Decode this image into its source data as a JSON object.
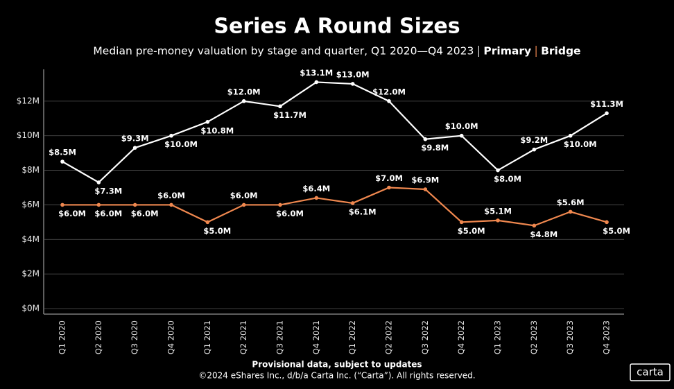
{
  "chart_data": {
    "type": "line",
    "title": "Series A Round Sizes",
    "subtitle": "Median pre-money valuation by stage and quarter, Q1 2020—Q4 2023",
    "categories": [
      "Q1 2020",
      "Q2 2020",
      "Q3 2020",
      "Q4 2020",
      "Q1 2021",
      "Q2 2021",
      "Q3 2021",
      "Q4 2021",
      "Q1 2022",
      "Q2 2022",
      "Q3 2022",
      "Q4 2022",
      "Q1 2023",
      "Q2 2023",
      "Q3 2023",
      "Q4 2023"
    ],
    "series": [
      {
        "name": "Primary",
        "color": "#ffffff",
        "values": [
          8.5,
          7.3,
          9.3,
          10.0,
          10.8,
          12.0,
          11.7,
          13.1,
          13.0,
          12.0,
          9.8,
          10.0,
          8.0,
          9.2,
          10.0,
          11.3
        ],
        "value_labels": [
          "$8.5M",
          "$7.3M",
          "$9.3M",
          "$10.0M",
          "$10.8M",
          "$12.0M",
          "$11.7M",
          "$13.1M",
          "$13.0M",
          "$12.0M",
          "$9.8M",
          "$10.0M",
          "$8.0M",
          "$9.2M",
          "$10.0M",
          "$11.3M"
        ]
      },
      {
        "name": "Bridge",
        "color": "#f0884f",
        "values": [
          6.0,
          6.0,
          6.0,
          6.0,
          5.0,
          6.0,
          6.0,
          6.4,
          6.1,
          7.0,
          6.9,
          5.0,
          5.1,
          4.8,
          5.6,
          5.0
        ],
        "value_labels": [
          "$6.0M",
          "$6.0M",
          "$6.0M",
          "$6.0M",
          "$5.0M",
          "$6.0M",
          "$6.0M",
          "$6.4M",
          "$6.1M",
          "$7.0M",
          "$6.9M",
          "$5.0M",
          "$5.1M",
          "$4.8M",
          "$5.6M",
          "$5.0M"
        ]
      }
    ],
    "ylim": [
      0,
      14
    ],
    "yticks": [
      {
        "value": 0,
        "label": "$0M"
      },
      {
        "value": 2,
        "label": "$2M"
      },
      {
        "value": 4,
        "label": "$4M"
      },
      {
        "value": 6,
        "label": "$6M"
      },
      {
        "value": 8,
        "label": "$8M"
      },
      {
        "value": 10,
        "label": "$10M"
      },
      {
        "value": 12,
        "label": "$12M"
      }
    ],
    "grid": true,
    "footnote": "Provisional data, subject to updates",
    "copyright": "©2024 eShares Inc., d/b/a Carta Inc. (“Carta”). All rights reserved.",
    "logo": "carta"
  }
}
